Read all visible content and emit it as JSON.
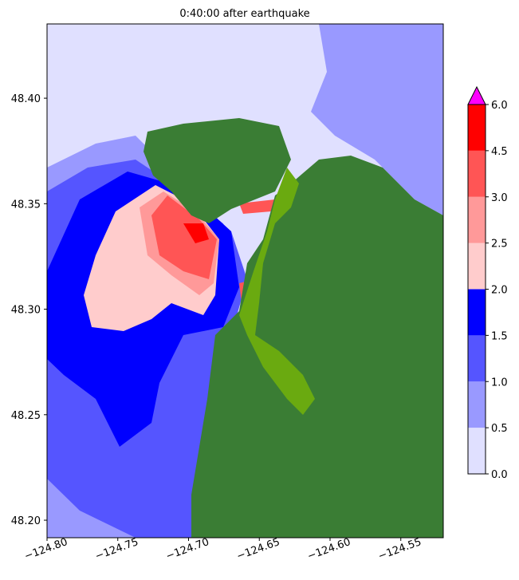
{
  "chart_data": {
    "type": "map",
    "title": "0:40:00 after earthquake",
    "xlim": [
      -124.8,
      -124.52
    ],
    "ylim": [
      48.1917,
      48.4352
    ],
    "xticks": [
      {
        "value": -124.8,
        "label": "−124.80"
      },
      {
        "value": -124.75,
        "label": "−124.75"
      },
      {
        "value": -124.7,
        "label": "−124.70"
      },
      {
        "value": -124.65,
        "label": "−124.65"
      },
      {
        "value": -124.6,
        "label": "−124.60"
      },
      {
        "value": -124.55,
        "label": "−124.55"
      }
    ],
    "yticks": [
      {
        "value": 48.2,
        "label": "48.20"
      },
      {
        "value": 48.25,
        "label": "48.25"
      },
      {
        "value": 48.3,
        "label": "48.30"
      },
      {
        "value": 48.35,
        "label": "48.35"
      },
      {
        "value": 48.4,
        "label": "48.40"
      }
    ],
    "colorbar": {
      "ticks": [
        {
          "value": 0,
          "label": "0.0"
        },
        {
          "value": 0.5,
          "label": "0.5"
        },
        {
          "value": 1,
          "label": "1.0"
        },
        {
          "value": 1.5,
          "label": "1.5"
        },
        {
          "value": 2,
          "label": "2.0"
        },
        {
          "value": 2.5,
          "label": "2.5"
        },
        {
          "value": 3,
          "label": "3.0"
        },
        {
          "value": 4.5,
          "label": "4.5"
        },
        {
          "value": 6,
          "label": "6.0"
        }
      ],
      "colors": [
        "#e0e0ff",
        "#9999ff",
        "#5555ff",
        "#0000ff",
        "#ffcccc",
        "#ff9999",
        "#ff5555",
        "#ff0000"
      ],
      "extend_color": "#ff00ff"
    }
  }
}
